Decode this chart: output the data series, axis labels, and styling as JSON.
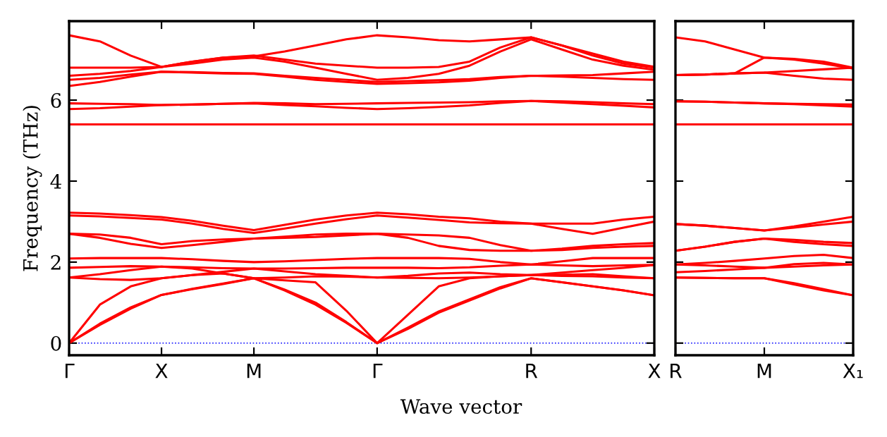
{
  "chart_data": [
    {
      "type": "line",
      "ylabel": "Frequency (THz)",
      "xlabel": "Wave vector",
      "categories": [
        "Γ",
        null,
        null,
        "X",
        null,
        null,
        "M",
        null,
        null,
        null,
        "Γ",
        null,
        null,
        null,
        null,
        "R",
        null,
        null,
        null,
        "X"
      ],
      "ylim": [
        -0.3,
        7.95
      ],
      "yticks": [
        0,
        2,
        4,
        6
      ],
      "marker": "none",
      "line_style": "solid",
      "ref_lines": [
        {
          "axis": "y",
          "value": 0,
          "label": null,
          "color": "#0000ff",
          "line_style": "dotted"
        }
      ],
      "series": [
        {
          "color": "#ff0000",
          "values": [
            7.6,
            7.45,
            7.1,
            6.82,
            6.95,
            7.05,
            7.08,
            7.2,
            7.35,
            7.5,
            7.6,
            7.55,
            7.48,
            7.45,
            7.5,
            7.55,
            7.35,
            7.15,
            6.95,
            6.82
          ]
        },
        {
          "color": "#ff0000",
          "values": [
            6.8,
            6.8,
            6.8,
            6.82,
            6.95,
            7.05,
            7.1,
            7.0,
            6.9,
            6.85,
            6.8,
            6.8,
            6.82,
            6.95,
            7.3,
            7.55,
            7.35,
            7.1,
            6.9,
            6.8
          ]
        },
        {
          "color": "#ff0000",
          "values": [
            6.6,
            6.65,
            6.72,
            6.82,
            6.9,
            7.0,
            7.05,
            6.95,
            6.8,
            6.65,
            6.5,
            6.55,
            6.65,
            6.85,
            7.2,
            7.5,
            7.25,
            7.0,
            6.85,
            6.75
          ]
        },
        {
          "color": "#ff0000",
          "values": [
            6.5,
            6.55,
            6.63,
            6.7,
            6.69,
            6.67,
            6.66,
            6.6,
            6.55,
            6.5,
            6.45,
            6.47,
            6.49,
            6.52,
            6.57,
            6.6,
            6.61,
            6.62,
            6.66,
            6.7
          ]
        },
        {
          "color": "#ff0000",
          "values": [
            6.35,
            6.45,
            6.58,
            6.7,
            6.68,
            6.66,
            6.65,
            6.58,
            6.5,
            6.45,
            6.4,
            6.42,
            6.44,
            6.48,
            6.55,
            6.6,
            6.58,
            6.55,
            6.52,
            6.5
          ]
        },
        {
          "color": "#ff0000",
          "values": [
            5.92,
            5.91,
            5.9,
            5.88,
            5.89,
            5.91,
            5.93,
            5.92,
            5.9,
            5.91,
            5.92,
            5.93,
            5.94,
            5.95,
            5.97,
            5.98,
            5.97,
            5.95,
            5.92,
            5.9
          ]
        },
        {
          "color": "#ff0000",
          "values": [
            5.78,
            5.8,
            5.84,
            5.88,
            5.89,
            5.91,
            5.92,
            5.88,
            5.85,
            5.81,
            5.78,
            5.8,
            5.83,
            5.87,
            5.93,
            5.98,
            5.94,
            5.9,
            5.86,
            5.82
          ]
        },
        {
          "color": "#ff0000",
          "values": [
            5.4,
            5.4,
            5.4,
            5.4,
            5.4,
            5.4,
            5.4,
            5.4,
            5.4,
            5.4,
            5.4,
            5.4,
            5.4,
            5.4,
            5.4,
            5.4,
            5.4,
            5.4,
            5.4,
            5.4
          ]
        },
        {
          "color": "#ff0000",
          "values": [
            3.22,
            3.2,
            3.16,
            3.11,
            3.02,
            2.9,
            2.79,
            2.92,
            3.05,
            3.15,
            3.22,
            3.18,
            3.12,
            3.08,
            3.0,
            2.95,
            2.95,
            2.95,
            3.05,
            3.12
          ]
        },
        {
          "color": "#ff0000",
          "values": [
            3.15,
            3.13,
            3.09,
            3.05,
            2.95,
            2.82,
            2.72,
            2.83,
            2.95,
            3.06,
            3.15,
            3.1,
            3.04,
            2.98,
            2.96,
            2.95,
            2.82,
            2.7,
            2.85,
            3.0
          ]
        },
        {
          "color": "#ff0000",
          "values": [
            2.7,
            2.68,
            2.6,
            2.44,
            2.52,
            2.56,
            2.58,
            2.63,
            2.68,
            2.7,
            2.7,
            2.68,
            2.66,
            2.6,
            2.42,
            2.28,
            2.33,
            2.4,
            2.44,
            2.47
          ]
        },
        {
          "color": "#ff0000",
          "values": [
            2.7,
            2.6,
            2.45,
            2.35,
            2.42,
            2.5,
            2.58,
            2.6,
            2.62,
            2.66,
            2.7,
            2.6,
            2.4,
            2.3,
            2.28,
            2.28,
            2.3,
            2.35,
            2.38,
            2.4
          ]
        },
        {
          "color": "#ff0000",
          "values": [
            2.09,
            2.1,
            2.1,
            2.1,
            2.07,
            2.03,
            2.0,
            2.02,
            2.05,
            2.08,
            2.1,
            2.1,
            2.1,
            2.08,
            2.0,
            1.94,
            2.02,
            2.1,
            2.1,
            2.1
          ]
        },
        {
          "color": "#ff0000",
          "values": [
            1.86,
            1.88,
            1.9,
            1.89,
            1.87,
            1.85,
            1.84,
            1.84,
            1.85,
            1.86,
            1.86,
            1.86,
            1.85,
            1.87,
            1.91,
            1.94,
            1.92,
            1.9,
            1.92,
            1.93
          ]
        },
        {
          "color": "#ff0000",
          "values": [
            1.62,
            1.7,
            1.8,
            1.89,
            1.84,
            1.72,
            1.6,
            1.62,
            1.65,
            1.64,
            1.62,
            1.66,
            1.72,
            1.74,
            1.7,
            1.68,
            1.74,
            1.8,
            1.86,
            1.93
          ]
        },
        {
          "color": "#ff0000",
          "values": [
            1.62,
            1.58,
            1.56,
            1.6,
            1.68,
            1.76,
            1.84,
            1.77,
            1.7,
            1.66,
            1.62,
            1.61,
            1.6,
            1.62,
            1.65,
            1.68,
            1.66,
            1.65,
            1.62,
            1.6
          ]
        },
        {
          "color": "#ff0000",
          "values": [
            0,
            0.45,
            0.85,
            1.19,
            1.33,
            1.46,
            1.6,
            1.3,
            0.95,
            0.5,
            0,
            0.35,
            0.75,
            1.05,
            1.35,
            1.6,
            1.5,
            1.4,
            1.3,
            1.18
          ]
        },
        {
          "color": "#ff0000",
          "values": [
            0,
            0.48,
            0.88,
            1.19,
            1.34,
            1.47,
            1.6,
            1.32,
            1.0,
            0.52,
            0,
            0.38,
            0.78,
            1.08,
            1.38,
            1.6,
            1.5,
            1.4,
            1.3,
            1.18
          ]
        },
        {
          "color": "#ff0000",
          "values": [
            0,
            0.95,
            1.4,
            1.6,
            1.68,
            1.72,
            1.6,
            1.55,
            1.5,
            0.8,
            0,
            0.7,
            1.4,
            1.6,
            1.65,
            1.68,
            1.69,
            1.7,
            1.65,
            1.6
          ]
        }
      ]
    },
    {
      "type": "line",
      "categories": [
        "R",
        null,
        null,
        "M",
        null,
        null,
        "X₁"
      ],
      "ylim": [
        -0.3,
        7.95
      ],
      "yticks": [
        {
          "value": 0,
          "label": null
        },
        {
          "value": 2,
          "label": null
        },
        {
          "value": 4,
          "label": null
        },
        {
          "value": 6,
          "label": null
        }
      ],
      "tick_labels": "x",
      "marker": "none",
      "line_style": "solid",
      "ref_lines": [
        {
          "axis": "y",
          "value": 0,
          "label": null,
          "color": "#0000ff",
          "line_style": "dotted"
        }
      ],
      "series": [
        {
          "color": "#ff0000",
          "values": [
            7.55,
            7.45,
            7.25,
            7.05,
            7.02,
            6.95,
            6.8
          ]
        },
        {
          "color": "#ff0000",
          "values": [
            6.62,
            6.63,
            6.66,
            7.05,
            7.0,
            6.9,
            6.78
          ]
        },
        {
          "color": "#ff0000",
          "values": [
            6.62,
            6.63,
            6.66,
            6.68,
            6.72,
            6.76,
            6.8
          ]
        },
        {
          "color": "#ff0000",
          "values": [
            6.62,
            6.63,
            6.66,
            6.68,
            6.6,
            6.53,
            6.5
          ]
        },
        {
          "color": "#ff0000",
          "values": [
            5.97,
            5.96,
            5.94,
            5.92,
            5.91,
            5.9,
            5.89
          ]
        },
        {
          "color": "#ff0000",
          "values": [
            5.97,
            5.96,
            5.94,
            5.92,
            5.9,
            5.87,
            5.84
          ]
        },
        {
          "color": "#ff0000",
          "values": [
            5.4,
            5.4,
            5.4,
            5.4,
            5.4,
            5.4,
            5.4
          ]
        },
        {
          "color": "#ff0000",
          "values": [
            2.94,
            2.9,
            2.84,
            2.78,
            2.88,
            3.0,
            3.12
          ]
        },
        {
          "color": "#ff0000",
          "values": [
            2.94,
            2.9,
            2.84,
            2.78,
            2.85,
            2.93,
            3.0
          ]
        },
        {
          "color": "#ff0000",
          "values": [
            2.28,
            2.38,
            2.5,
            2.58,
            2.55,
            2.5,
            2.47
          ]
        },
        {
          "color": "#ff0000",
          "values": [
            2.28,
            2.38,
            2.5,
            2.58,
            2.5,
            2.44,
            2.4
          ]
        },
        {
          "color": "#ff0000",
          "values": [
            1.94,
            1.98,
            2.03,
            2.09,
            2.15,
            2.18,
            2.1
          ]
        },
        {
          "color": "#ff0000",
          "values": [
            1.94,
            1.92,
            1.89,
            1.86,
            1.95,
            1.98,
            1.94
          ]
        },
        {
          "color": "#ff0000",
          "values": [
            1.75,
            1.78,
            1.82,
            1.86,
            1.89,
            1.92,
            1.94
          ]
        },
        {
          "color": "#ff0000",
          "values": [
            1.62,
            1.61,
            1.6,
            1.6,
            1.45,
            1.3,
            1.18
          ]
        },
        {
          "color": "#ff0000",
          "values": [
            1.62,
            1.61,
            1.6,
            1.6,
            1.48,
            1.33,
            1.18
          ]
        }
      ]
    }
  ]
}
